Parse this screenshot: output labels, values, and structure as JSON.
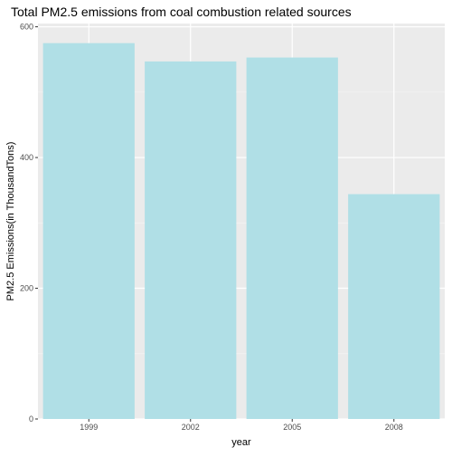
{
  "chart_data": {
    "type": "bar",
    "title": "Total PM2.5 emissions from coal combustion related sources",
    "xlabel": "year",
    "ylabel": "PM2.5 Emissions(in ThousandTons)",
    "categories": [
      "1999",
      "2002",
      "2005",
      "2008"
    ],
    "values": [
      575,
      547,
      553,
      344
    ],
    "ylim": [
      0,
      605
    ],
    "yticks": [
      0,
      200,
      400,
      600
    ],
    "grid": true,
    "legend": "none",
    "colors": {
      "bar": "#b0dfe6",
      "panel": "#ebebeb",
      "grid_major": "#ffffff",
      "grid_minor": "#f5f5f5",
      "tick_text": "#4d4d4d",
      "tick_mark": "#333333"
    }
  }
}
